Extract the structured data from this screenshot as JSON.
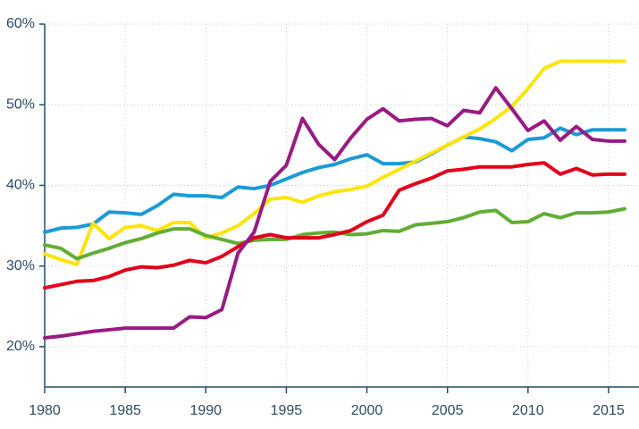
{
  "chart_data": {
    "type": "line",
    "x": [
      1980,
      1981,
      1982,
      1983,
      1984,
      1985,
      1986,
      1987,
      1988,
      1989,
      1990,
      1991,
      1992,
      1993,
      1994,
      1995,
      1996,
      1997,
      1998,
      1999,
      2000,
      2001,
      2002,
      2003,
      2004,
      2005,
      2006,
      2007,
      2008,
      2009,
      2010,
      2011,
      2012,
      2013,
      2014,
      2015,
      2016
    ],
    "series": [
      {
        "color": "#1b9ad6",
        "values": [
          34.2,
          34.7,
          34.8,
          35.2,
          36.7,
          36.6,
          36.4,
          37.5,
          38.9,
          38.7,
          38.7,
          38.5,
          39.8,
          39.6,
          40.0,
          40.8,
          41.6,
          42.2,
          42.6,
          43.3,
          43.8,
          42.7,
          42.7,
          42.9,
          43.9,
          45.0,
          46.0,
          45.8,
          45.4,
          44.3,
          45.7,
          45.9,
          47.1,
          46.3,
          46.9,
          46.9,
          46.9
        ]
      },
      {
        "color": "#fde40c",
        "values": [
          31.5,
          30.8,
          30.2,
          35.3,
          33.4,
          34.8,
          35.0,
          34.4,
          35.4,
          35.4,
          33.5,
          34.1,
          35.0,
          36.5,
          38.3,
          38.5,
          37.9,
          38.7,
          39.2,
          39.5,
          39.9,
          41.0,
          42.0,
          43.0,
          44.0,
          45.0,
          46.0,
          47.0,
          48.3,
          49.8,
          52.0,
          54.5,
          55.4,
          55.4,
          55.4,
          55.4,
          55.4
        ]
      },
      {
        "color": "#62ad34",
        "values": [
          32.6,
          32.2,
          30.9,
          31.6,
          32.2,
          32.9,
          33.4,
          34.1,
          34.6,
          34.6,
          33.8,
          33.3,
          32.8,
          33.2,
          33.3,
          33.3,
          33.9,
          34.1,
          34.2,
          33.9,
          34.0,
          34.4,
          34.3,
          35.1,
          35.3,
          35.5,
          36.0,
          36.7,
          36.9,
          35.4,
          35.5,
          36.5,
          36.0,
          36.6,
          36.6,
          36.7,
          37.1
        ]
      },
      {
        "color": "#e2001a",
        "values": [
          27.3,
          27.7,
          28.1,
          28.2,
          28.7,
          29.5,
          29.9,
          29.8,
          30.1,
          30.7,
          30.4,
          31.2,
          32.4,
          33.5,
          33.9,
          33.5,
          33.5,
          33.5,
          33.9,
          34.4,
          35.5,
          36.3,
          39.4,
          40.2,
          40.9,
          41.8,
          42.0,
          42.3,
          42.3,
          42.3,
          42.6,
          42.8,
          41.4,
          42.1,
          41.3,
          41.4,
          41.4
        ]
      },
      {
        "color": "#981b83",
        "values": [
          21.1,
          21.3,
          21.6,
          21.9,
          22.1,
          22.3,
          22.3,
          22.3,
          22.3,
          23.7,
          23.6,
          24.6,
          31.6,
          34.2,
          40.5,
          42.5,
          48.3,
          45.1,
          43.2,
          45.9,
          48.2,
          49.5,
          48.0,
          48.2,
          48.3,
          47.4,
          49.3,
          49.0,
          52.1,
          49.5,
          46.8,
          48.0,
          45.6,
          47.3,
          45.7,
          45.5,
          45.5
        ]
      }
    ],
    "xlim": [
      1980,
      2017
    ],
    "xticks": [
      1980,
      1985,
      1990,
      1995,
      2000,
      2005,
      2010,
      2015
    ],
    "ylim": [
      15,
      60
    ],
    "yticks": [
      {
        "value": 20,
        "label": "20%"
      },
      {
        "value": 30,
        "label": "30%"
      },
      {
        "value": 40,
        "label": "40%"
      },
      {
        "value": 50,
        "label": "50%"
      },
      {
        "value": 60,
        "label": "60%"
      }
    ],
    "grid": true,
    "axis_color": "#1f4e6e",
    "grid_color": "#c9ccd0"
  }
}
